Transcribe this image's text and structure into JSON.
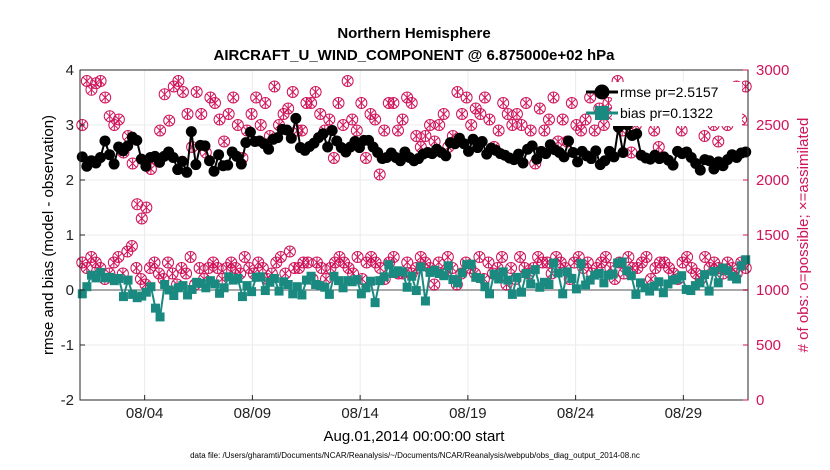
{
  "chart_data": {
    "type": "line",
    "title": "Northern Hemisphere",
    "subtitle": "AIRCRAFT_U_WIND_COMPONENT @ 6.875000e+02 hPa",
    "xlabel": "Aug.01,2014 00:00:00 start",
    "ylabel_left": "rmse and bias (model - observation)",
    "ylabel_right": "# of obs: o=possible; ×=assimilated",
    "footnote": "data file: /Users/gharamti/Documents/NCAR/Reanalysis/~/Documents/NCAR/Reanalysis/webpub/obs_diag_output_2014-08.nc",
    "x_tick_labels": [
      "08/04",
      "08/09",
      "08/14",
      "08/19",
      "08/24",
      "08/29"
    ],
    "x_tick_days": [
      4,
      9,
      14,
      19,
      24,
      29
    ],
    "xlim": [
      1.0,
      32.0
    ],
    "ylim_left": [
      -2,
      4
    ],
    "yticks_left": [
      "-2",
      "-1",
      "0",
      "1",
      "2",
      "3",
      "4"
    ],
    "ylim_right": [
      0,
      3000
    ],
    "yticks_right": [
      "0",
      "500",
      "1000",
      "1500",
      "2000",
      "2500",
      "3000"
    ],
    "grid": true,
    "legend_position": "top-right",
    "legend": [
      {
        "key": "rmse",
        "label": "rmse pr=2.5157"
      },
      {
        "key": "bias",
        "label": "bias pr=0.1322"
      }
    ],
    "colors": {
      "rmse": "#000000",
      "bias": "#1a8a80",
      "obs": "#d0145a",
      "zero_line": "#a9a9a9",
      "grid": "#ebebeb"
    },
    "series": [
      {
        "name": "rmse",
        "values": [
          2.42,
          2.25,
          2.35,
          2.31,
          2.41,
          2.71,
          2.46,
          2.29,
          2.6,
          2.53,
          2.62,
          2.78,
          2.72,
          2.38,
          2.25,
          2.41,
          2.43,
          2.32,
          2.43,
          2.51,
          2.41,
          2.19,
          2.34,
          2.14,
          2.88,
          2.28,
          2.63,
          2.62,
          2.35,
          2.16,
          2.46,
          2.26,
          2.27,
          2.51,
          2.43,
          2.29,
          2.68,
          2.87,
          2.7,
          2.71,
          2.66,
          2.56,
          2.74,
          2.77,
          2.92,
          2.91,
          2.76,
          3.12,
          2.59,
          2.54,
          2.61,
          2.67,
          2.77,
          2.84,
          2.6,
          2.9,
          2.71,
          2.59,
          2.51,
          2.6,
          2.7,
          2.59,
          2.72,
          2.72,
          2.6,
          2.5,
          2.39,
          2.41,
          2.49,
          2.41,
          2.35,
          2.51,
          2.41,
          2.35,
          2.39,
          2.47,
          2.5,
          2.48,
          2.56,
          2.5,
          2.44,
          2.68,
          2.66,
          2.76,
          2.66,
          2.52,
          2.74,
          2.59,
          2.7,
          2.47,
          2.58,
          2.54,
          2.48,
          2.45,
          2.4,
          2.37,
          2.47,
          2.31,
          2.56,
          2.62,
          2.38,
          2.52,
          2.48,
          2.64,
          2.55,
          2.5,
          2.42,
          2.71,
          2.5,
          2.33,
          2.52,
          2.44,
          2.39,
          2.53,
          2.28,
          2.35,
          2.52,
          2.42,
          2.96,
          2.5,
          3.0,
          2.81,
          2.84,
          2.45,
          2.4,
          2.38,
          2.45,
          2.39,
          2.42,
          2.36,
          2.27,
          2.52,
          2.48,
          2.51,
          2.41,
          2.3,
          2.18,
          2.37,
          2.35,
          2.2,
          2.33,
          2.26,
          2.37,
          2.46,
          2.41,
          2.49,
          2.51
        ]
      },
      {
        "name": "bias",
        "values": [
          -0.07,
          0.06,
          0.27,
          0.22,
          0.32,
          0.22,
          0.23,
          0.17,
          0.21,
          -0.12,
          0.18,
          -0.08,
          -0.14,
          -0.11,
          -0.04,
          0.06,
          -0.33,
          -0.49,
          0.1,
          0.0,
          -0.1,
          0.04,
          0.08,
          -0.09,
          0.01,
          0.14,
          0.12,
          0.04,
          0.17,
          0.11,
          -0.06,
          0.04,
          0.24,
          0.18,
          0.21,
          -0.12,
          0.08,
          -0.03,
          0.23,
          0.24,
          -0.01,
          0.14,
          0.21,
          -0.02,
          0.15,
          0.1,
          -0.07,
          0.06,
          -0.09,
          0.18,
          0.25,
          0.1,
          0.08,
          0.05,
          -0.08,
          0.25,
          0.17,
          0.04,
          0.17,
          0.15,
          0.19,
          -0.07,
          0.04,
          0.16,
          -0.23,
          0.17,
          0.24,
          0.46,
          0.3,
          0.35,
          0.33,
          0.05,
          0.25,
          -0.01,
          0.42,
          -0.2,
          0.32,
          0.36,
          0.3,
          0.26,
          0.44,
          0.19,
          0.13,
          0.31,
          0.46,
          0.47,
          0.23,
          0.21,
          0.06,
          -0.07,
          0.29,
          0.2,
          0.33,
          0.18,
          -0.08,
          0.23,
          -0.04,
          0.3,
          0.11,
          0.37,
          0.05,
          0.14,
          0.1,
          0.49,
          0.31,
          -0.07,
          0.33,
          0.21,
          0.02,
          0.48,
          0.09,
          0.18,
          0.27,
          0.3,
          0.13,
          0.27,
          0.29,
          0.49,
          0.51,
          0.35,
          0.26,
          -0.08,
          0.13,
          0.04,
          -0.02,
          0.07,
          0.15,
          -0.05,
          0.11,
          0.18,
          0.2,
          0.26,
          0.01,
          -0.01,
          0.08,
          0.13,
          0.28,
          -0.02,
          0.34,
          0.13,
          0.4,
          0.35,
          0.25,
          0.2,
          0.44,
          0.55
        ]
      },
      {
        "name": "obs_possible",
        "values": [
          2500,
          2900,
          2820,
          2880,
          2900,
          2750,
          2580,
          2500,
          2550,
          2250,
          2400,
          2150,
          1780,
          1650,
          1750,
          2100,
          2200,
          2450,
          2780,
          2540,
          2850,
          2900,
          2800,
          2600,
          2300,
          2800,
          2600,
          2250,
          2750,
          2700,
          2550,
          2350,
          2600,
          2750,
          2500,
          2200,
          2450,
          2600,
          2750,
          2500,
          2700,
          2400,
          2850,
          2500,
          2600,
          2650,
          2800,
          2450,
          2450,
          2700,
          2700,
          2800,
          2600,
          2450,
          2550,
          2200,
          2700,
          2500,
          2900,
          2550,
          2450,
          2700,
          2200,
          2600,
          2550,
          2050,
          2450,
          2700,
          2700,
          2450,
          2550,
          2750,
          2700,
          2400,
          2300,
          2400,
          2500,
          2350,
          2500,
          2600,
          2300,
          2400,
          2800,
          2600,
          2750,
          2500,
          2650,
          2600,
          2750,
          2550,
          2300,
          2450,
          2700,
          2600,
          2500,
          2600,
          2500,
          2700,
          2450,
          2150,
          2650,
          2450,
          2550,
          2750,
          2350,
          2550,
          2350,
          2700,
          2500,
          2450,
          2550,
          2750,
          2450,
          2650,
          2500,
          2700,
          2600,
          2900,
          2450,
          2800,
          2250,
          2500,
          2550,
          2600,
          2700,
          2450,
          2300,
          2550,
          2800,
          2550,
          2700,
          2450,
          2600,
          2550,
          2700,
          2650,
          2400,
          2600,
          2500,
          2350,
          2550,
          2500,
          2750,
          2850,
          2550,
          2850
        ]
      },
      {
        "name": "obs_assimilated",
        "values": [
          1250,
          1200,
          1300,
          1250,
          1200,
          1100,
          1150,
          1250,
          1300,
          1150,
          1350,
          1400,
          1200,
          1100,
          1050,
          1200,
          1250,
          1150,
          1100,
          1250,
          1150,
          1050,
          1200,
          1150,
          1300,
          1050,
          1200,
          1100,
          1200,
          1250,
          1200,
          1100,
          1200,
          1250,
          1200,
          1150,
          1300,
          1200,
          1150,
          1250,
          1200,
          1100,
          1150,
          1250,
          1300,
          1150,
          1350,
          1200,
          1200,
          1250,
          1250,
          1100,
          1250,
          1200,
          1100,
          1200,
          1250,
          1300,
          1250,
          1200,
          1150,
          1300,
          1100,
          1250,
          1300,
          1250,
          1200,
          1100,
          1250,
          1300,
          1150,
          1150,
          1250,
          1150,
          1200,
          1300,
          1250,
          1200,
          1050,
          1250,
          1150,
          1300,
          1200,
          1050,
          1150,
          1250,
          1200,
          1150,
          1300,
          1100,
          1250,
          1150,
          1200,
          1300,
          1050,
          1200,
          1100,
          1300,
          1200,
          1150,
          1200,
          1300,
          1250,
          1250,
          1150,
          1300,
          1250,
          1200,
          1100,
          1250,
          1300,
          1200,
          1250,
          1150,
          1200,
          1250,
          1300,
          1200,
          1100,
          1250,
          1150,
          1300,
          1200,
          1200,
          1250,
          1300,
          1100,
          1200,
          1250,
          1250,
          1200,
          1150,
          1100,
          1250,
          1300,
          1200,
          1150,
          1100,
          1300,
          1200,
          1250,
          1200,
          1150,
          1250,
          1200,
          1150,
          1250,
          1200
        ]
      }
    ]
  }
}
